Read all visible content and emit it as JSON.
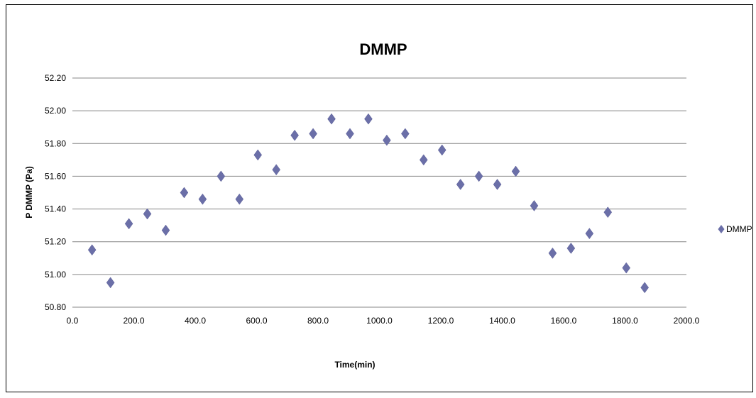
{
  "chart_data": {
    "type": "scatter",
    "title": "DMMP",
    "xlabel": "Time(min)",
    "ylabel": "P DMMP (Pa)",
    "xlim": [
      0,
      2000
    ],
    "ylim": [
      50.8,
      52.2
    ],
    "x_ticks": [
      "0.0",
      "200.0",
      "400.0",
      "600.0",
      "800.0",
      "1000.0",
      "1200.0",
      "1400.0",
      "1600.0",
      "1800.0",
      "2000.0"
    ],
    "y_ticks": [
      "50.80",
      "51.00",
      "51.20",
      "51.40",
      "51.60",
      "51.80",
      "52.00",
      "52.20"
    ],
    "grid": "horizontal",
    "legend_position": "right",
    "marker_color": "#6b6fa8",
    "series": [
      {
        "name": "DMMP",
        "points": [
          [
            64,
            51.15
          ],
          [
            124,
            50.95
          ],
          [
            184,
            51.31
          ],
          [
            244,
            51.37
          ],
          [
            304,
            51.27
          ],
          [
            364,
            51.5
          ],
          [
            424,
            51.46
          ],
          [
            484,
            51.6
          ],
          [
            544,
            51.46
          ],
          [
            604,
            51.73
          ],
          [
            664,
            51.64
          ],
          [
            724,
            51.85
          ],
          [
            784,
            51.86
          ],
          [
            844,
            51.95
          ],
          [
            904,
            51.86
          ],
          [
            964,
            51.95
          ],
          [
            1024,
            51.82
          ],
          [
            1084,
            51.86
          ],
          [
            1144,
            51.7
          ],
          [
            1204,
            51.76
          ],
          [
            1264,
            51.55
          ],
          [
            1324,
            51.6
          ],
          [
            1384,
            51.55
          ],
          [
            1444,
            51.63
          ],
          [
            1504,
            51.42
          ],
          [
            1564,
            51.13
          ],
          [
            1624,
            51.16
          ],
          [
            1684,
            51.25
          ],
          [
            1744,
            51.38
          ],
          [
            1804,
            51.04
          ],
          [
            1864,
            50.92
          ]
        ]
      }
    ]
  }
}
